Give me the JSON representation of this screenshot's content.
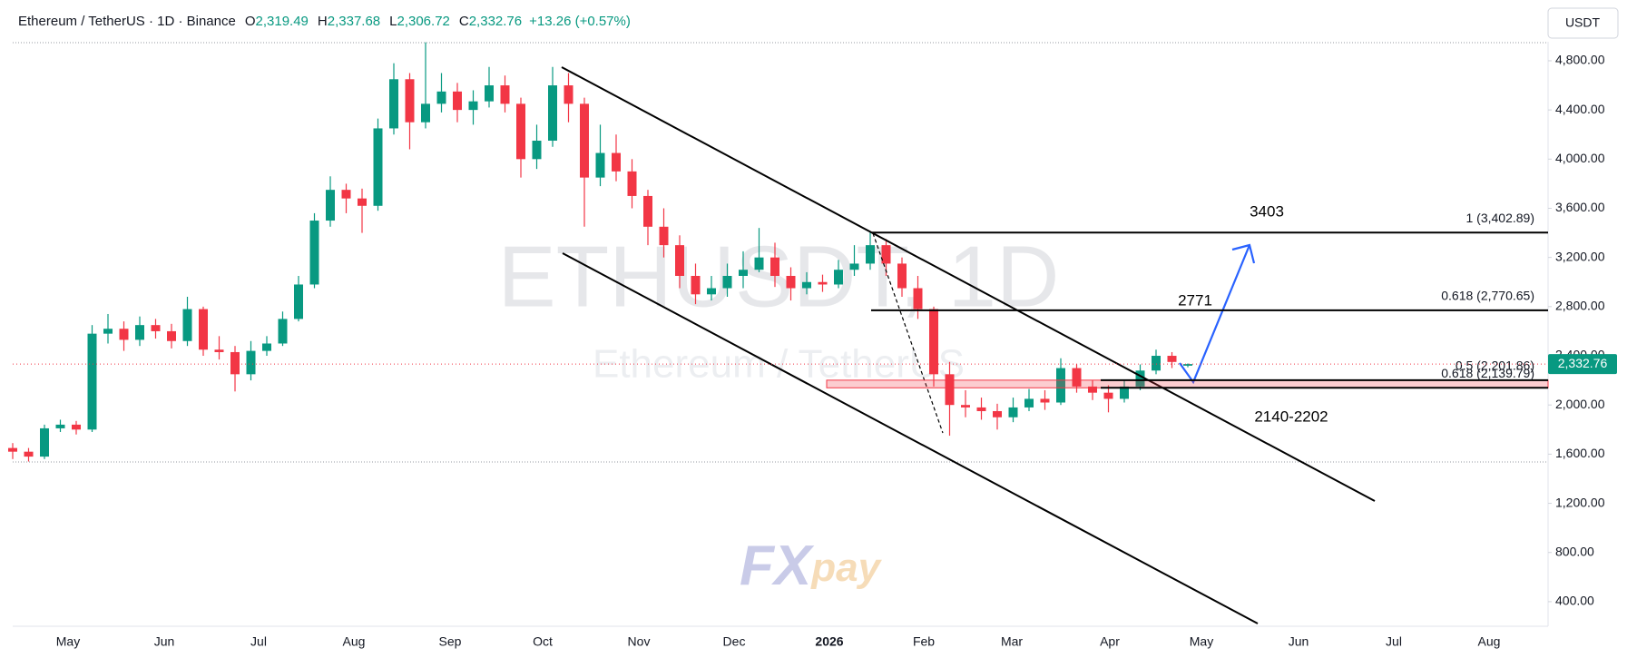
{
  "header": {
    "symbol": "Ethereum / TetherUS · 1D · Binance",
    "ohlc": [
      [
        "O",
        "2,319.49"
      ],
      [
        "H",
        "2,337.68"
      ],
      [
        "L",
        "2,306.72"
      ],
      [
        "C",
        "2,332.76"
      ]
    ],
    "change": "+13.26 (+0.57%)",
    "currency": "USDT"
  },
  "watermark": {
    "symbol": "ETHUSDT, 1D",
    "name": "Ethereum / TetherUS",
    "logo": [
      "FX",
      "pay"
    ]
  },
  "chart_data": {
    "type": "candlestick",
    "up_color": "#089981",
    "down_color": "#f23645",
    "x_labels": [
      "May",
      "Jun",
      "Jul",
      "Aug",
      "Sep",
      "Oct",
      "Nov",
      "Dec",
      "2026",
      "Feb",
      "Mar",
      "Apr",
      "May",
      "Jun",
      "Jul",
      "Aug"
    ],
    "open": [
      1650,
      1620,
      1580,
      1810,
      1840,
      1800,
      2580,
      2620,
      2530,
      2650,
      2600,
      2520,
      2780,
      2450,
      2430,
      2250,
      2440,
      2500,
      2700,
      2980,
      3500,
      3750,
      3680,
      3620,
      4250,
      4650,
      4300,
      4450,
      4550,
      4400,
      4470,
      4600,
      4450,
      4000,
      4150,
      4600,
      4450,
      3850,
      4050,
      3900,
      3700,
      3450,
      3300,
      3050,
      2900,
      2950,
      3050,
      3100,
      3200,
      3050,
      2950,
      3000,
      2980,
      3100,
      3150,
      3300,
      3150,
      2950,
      2780,
      2250,
      2000,
      1980,
      1950,
      1900,
      1980,
      2050,
      2020,
      2300,
      2150,
      2100,
      2050,
      2150,
      2280,
      2400,
      2319.49
    ],
    "high": [
      1690,
      1650,
      1840,
      1880,
      1870,
      2650,
      2740,
      2680,
      2720,
      2700,
      2660,
      2880,
      2800,
      2560,
      2480,
      2520,
      2560,
      2760,
      3050,
      3560,
      3860,
      3800,
      3760,
      4330,
      4780,
      4700,
      4950,
      4700,
      4620,
      4560,
      4750,
      4680,
      4500,
      4280,
      4750,
      4700,
      4500,
      4280,
      4200,
      4000,
      3750,
      3600,
      3380,
      3150,
      3050,
      3150,
      3250,
      3440,
      3320,
      3120,
      3080,
      3060,
      3180,
      3300,
      3403,
      3350,
      3200,
      3050,
      2800,
      2350,
      2120,
      2060,
      2010,
      2060,
      2130,
      2120,
      2380,
      2330,
      2200,
      2160,
      2200,
      2330,
      2450,
      2430,
      2337.68
    ],
    "low": [
      1560,
      1540,
      1560,
      1780,
      1760,
      1780,
      2500,
      2440,
      2480,
      2540,
      2460,
      2480,
      2400,
      2370,
      2110,
      2200,
      2400,
      2480,
      2680,
      2950,
      3450,
      3560,
      3400,
      3580,
      4200,
      4080,
      4250,
      4380,
      4300,
      4280,
      4420,
      4380,
      3850,
      3920,
      4100,
      4300,
      3450,
      3780,
      3820,
      3600,
      3300,
      3200,
      2950,
      2820,
      2850,
      2880,
      2950,
      3080,
      2960,
      2850,
      2900,
      2920,
      2950,
      3050,
      3100,
      3050,
      2880,
      2700,
      2150,
      1750,
      1900,
      1880,
      1800,
      1860,
      1950,
      1960,
      2000,
      2100,
      2040,
      1940,
      2020,
      2120,
      2250,
      2300,
      2306.72
    ],
    "close": [
      1620,
      1580,
      1810,
      1840,
      1800,
      2580,
      2620,
      2530,
      2650,
      2600,
      2520,
      2780,
      2450,
      2430,
      2250,
      2440,
      2500,
      2700,
      2980,
      3500,
      3750,
      3680,
      3620,
      4250,
      4650,
      4300,
      4450,
      4550,
      4400,
      4470,
      4600,
      4450,
      4000,
      4150,
      4600,
      4450,
      3850,
      4050,
      3900,
      3700,
      3450,
      3300,
      3050,
      2900,
      2950,
      3050,
      3100,
      3200,
      3050,
      2950,
      3000,
      2980,
      3100,
      3150,
      3300,
      3150,
      2950,
      2780,
      2250,
      2000,
      1980,
      1950,
      1900,
      1980,
      2050,
      2020,
      2300,
      2150,
      2100,
      2050,
      2150,
      2280,
      2400,
      2350,
      2332.76
    ],
    "ylim": [
      200,
      4940
    ],
    "yticks": [
      {
        "value": 400,
        "label": "400.00"
      },
      {
        "value": 800,
        "label": "800.00"
      },
      {
        "value": 1200,
        "label": "1,200.00"
      },
      {
        "value": 1600,
        "label": "1,600.00"
      },
      {
        "value": 2000,
        "label": "2,000.00"
      },
      {
        "value": 2400,
        "label": "2,400.00"
      },
      {
        "value": 2800,
        "label": "2,800.00"
      },
      {
        "value": 3200,
        "label": "3,200.00"
      },
      {
        "value": 3600,
        "label": "3,600.00"
      },
      {
        "value": 4000,
        "label": "4,000.00"
      },
      {
        "value": 4400,
        "label": "4,400.00"
      },
      {
        "value": 4800,
        "label": "4,800.00"
      }
    ],
    "last_price": {
      "value": 2332.76,
      "label": "2,332.76"
    },
    "levels": [
      {
        "label": "1 (3,402.89)",
        "value": 3402.89
      },
      {
        "label": "0.618 (2,770.65)",
        "value": 2770.65
      },
      {
        "label": "0.5 (2,201.86)",
        "value": 2201.86
      },
      {
        "label": "0.618 (2,139.79)",
        "value": 2139.79
      }
    ],
    "annotations": [
      "3403",
      "2771",
      "2140-2202"
    ]
  }
}
